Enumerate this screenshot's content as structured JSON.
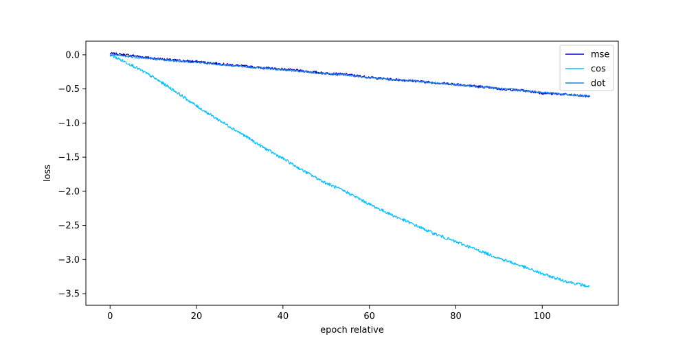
{
  "chart_data": {
    "type": "line",
    "xlabel": "epoch relative",
    "ylabel": "loss",
    "xlim": [
      -5.6,
      117.6
    ],
    "ylim": [
      -3.67,
      0.2
    ],
    "xticks": [
      0,
      20,
      40,
      60,
      80,
      100
    ],
    "yticks": [
      0.0,
      -0.5,
      -1.0,
      -1.5,
      -2.0,
      -2.5,
      -3.0,
      -3.5
    ],
    "xtick_labels": [
      "0",
      "20",
      "40",
      "60",
      "80",
      "100"
    ],
    "ytick_labels": [
      "0.0",
      "−0.5",
      "−1.0",
      "−1.5",
      "−2.0",
      "−2.5",
      "−3.0",
      "−3.5"
    ],
    "grid": false,
    "legend": "top-right",
    "x": [
      0,
      5,
      10,
      15,
      20,
      25,
      30,
      35,
      40,
      45,
      50,
      55,
      60,
      65,
      70,
      75,
      80,
      85,
      90,
      95,
      100,
      105,
      111
    ],
    "series": [
      {
        "name": "mse",
        "color": "#0000cd",
        "values": [
          0.02,
          -0.01,
          -0.05,
          -0.08,
          -0.1,
          -0.13,
          -0.16,
          -0.19,
          -0.21,
          -0.24,
          -0.27,
          -0.29,
          -0.33,
          -0.36,
          -0.38,
          -0.41,
          -0.43,
          -0.46,
          -0.5,
          -0.52,
          -0.56,
          -0.58,
          -0.61
        ]
      },
      {
        "name": "cos",
        "color": "#00bfff",
        "values": [
          0.0,
          -0.15,
          -0.33,
          -0.53,
          -0.75,
          -0.95,
          -1.14,
          -1.34,
          -1.52,
          -1.71,
          -1.88,
          -2.02,
          -2.19,
          -2.34,
          -2.48,
          -2.62,
          -2.74,
          -2.86,
          -2.98,
          -3.09,
          -3.21,
          -3.31,
          -3.4
        ]
      },
      {
        "name": "dot",
        "color": "#1e7fdc",
        "values": [
          0.0,
          -0.03,
          -0.06,
          -0.09,
          -0.11,
          -0.14,
          -0.17,
          -0.19,
          -0.22,
          -0.25,
          -0.28,
          -0.3,
          -0.33,
          -0.36,
          -0.38,
          -0.41,
          -0.44,
          -0.47,
          -0.49,
          -0.52,
          -0.55,
          -0.58,
          -0.61
        ]
      }
    ]
  }
}
